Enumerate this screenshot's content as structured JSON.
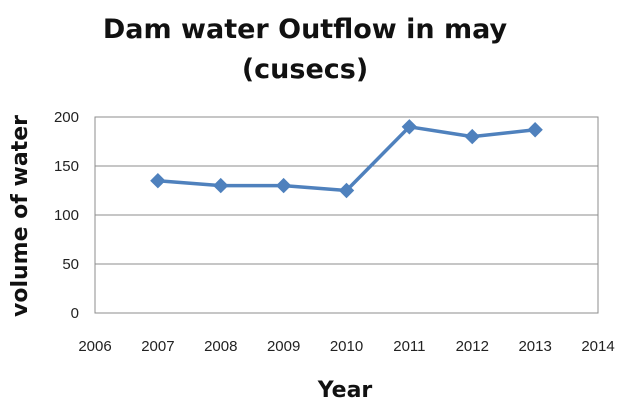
{
  "chart_data": {
    "type": "line",
    "title_lines": [
      "Dam water Outflow  in may",
      "(cusecs)"
    ],
    "xlabel": "Year",
    "ylabel": "volume of water",
    "xlim": [
      2006,
      2014
    ],
    "ylim": [
      0,
      200
    ],
    "xticks": [
      2006,
      2007,
      2008,
      2009,
      2010,
      2011,
      2012,
      2013,
      2014
    ],
    "yticks": [
      0,
      50,
      100,
      150,
      200
    ],
    "grid": "horizontal",
    "legend": "none",
    "series": [
      {
        "x": [
          2007,
          2008,
          2009,
          2010,
          2011,
          2012,
          2013
        ],
        "y": [
          135,
          130,
          130,
          125,
          190,
          180,
          187
        ],
        "color": "#4f81bd",
        "marker": "diamond"
      }
    ]
  }
}
